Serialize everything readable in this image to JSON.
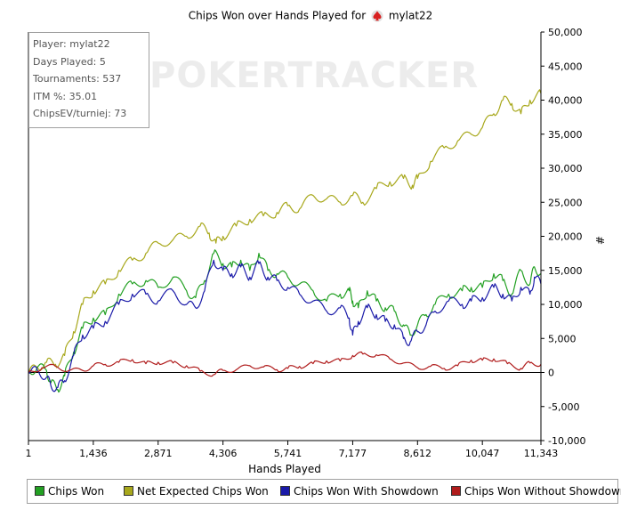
{
  "title": {
    "prefix": "Chips Won over Hands Played for",
    "player": "mylat22"
  },
  "watermark": "POKERTRACKER",
  "info_box": [
    "Player: mylat22",
    "Days Played: 5",
    "Tournaments: 537",
    "ITM %: 35.01",
    "ChipsEV/turniej: 73"
  ],
  "legend": [
    {
      "label": "Chips Won",
      "color": "#22a022"
    },
    {
      "label": "Net Expected Chips Won",
      "color": "#a8a81c"
    },
    {
      "label": "Chips Won With Showdown",
      "color": "#1a1aa8"
    },
    {
      "label": "Chips Won Without Showdown",
      "color": "#b01c1c"
    }
  ],
  "chart_data": {
    "type": "line",
    "xlabel": "Hands Played",
    "ylabel": "#",
    "xlim": [
      1,
      11343
    ],
    "ylim": [
      -10000,
      50000
    ],
    "x_ticks": [
      1,
      1436,
      2871,
      4306,
      5741,
      7177,
      8612,
      10047,
      11343
    ],
    "x_tick_labels": [
      "1",
      "1,436",
      "2,871",
      "4,306",
      "5,741",
      "7,177",
      "8,612",
      "10,047",
      "11,343"
    ],
    "y_ticks": [
      50000,
      45000,
      40000,
      35000,
      30000,
      25000,
      20000,
      15000,
      10000,
      5000,
      0,
      -5000,
      -10000
    ],
    "y_tick_labels": [
      "50,000",
      "45,000",
      "40,000",
      "35,000",
      "30,000",
      "25,000",
      "20,000",
      "15,000",
      "10,000",
      "5,000",
      "0",
      "-5,000",
      "-10,000"
    ],
    "series": [
      {
        "name": "Net Expected Chips Won",
        "color": "#a8a81c",
        "x": [
          1,
          200,
          400,
          600,
          800,
          1000,
          1200,
          1436,
          1700,
          2000,
          2300,
          2600,
          2871,
          3200,
          3500,
          3800,
          4000,
          4150,
          4306,
          4600,
          4900,
          5200,
          5500,
          5741,
          6000,
          6300,
          6600,
          6900,
          7177,
          7400,
          7700,
          8000,
          8300,
          8500,
          8612,
          8900,
          9200,
          9500,
          9800,
          10047,
          10300,
          10500,
          10700,
          10900,
          11100,
          11343
        ],
        "y": [
          0,
          800,
          1500,
          1200,
          2500,
          6000,
          10000,
          12000,
          13000,
          15000,
          16500,
          17500,
          19000,
          19500,
          20000,
          21500,
          20500,
          19000,
          20000,
          21500,
          22500,
          23000,
          23500,
          24500,
          24000,
          26000,
          25500,
          25000,
          26000,
          25000,
          27000,
          28000,
          28500,
          27500,
          28500,
          31000,
          33000,
          34000,
          35000,
          36000,
          38000,
          40000,
          39500,
          38000,
          40000,
          41000
        ]
      },
      {
        "name": "Chips Won",
        "color": "#22a022",
        "x": [
          1,
          200,
          400,
          500,
          650,
          800,
          1000,
          1200,
          1436,
          1700,
          2000,
          2300,
          2600,
          2871,
          3200,
          3500,
          3700,
          3900,
          4100,
          4306,
          4500,
          4700,
          4900,
          5100,
          5300,
          5500,
          5741,
          6000,
          6300,
          6600,
          6900,
          7100,
          7177,
          7300,
          7500,
          7700,
          7900,
          8100,
          8300,
          8450,
          8612,
          8800,
          9000,
          9300,
          9600,
          9800,
          10047,
          10300,
          10500,
          10700,
          10900,
          11100,
          11200,
          11343
        ],
        "y": [
          0,
          800,
          300,
          -1500,
          -2500,
          -500,
          3000,
          6500,
          8000,
          8500,
          11500,
          13000,
          13500,
          12500,
          14000,
          12000,
          11000,
          13500,
          17500,
          16000,
          15500,
          16500,
          15000,
          17500,
          15000,
          14500,
          14000,
          13000,
          12000,
          10500,
          11500,
          12000,
          10500,
          9500,
          12000,
          10500,
          9500,
          9000,
          7000,
          5500,
          7000,
          8500,
          10000,
          11500,
          12000,
          12500,
          12500,
          14500,
          13500,
          11500,
          15000,
          13000,
          15500,
          14500
        ]
      },
      {
        "name": "Chips Won With Showdown",
        "color": "#1a1aa8",
        "x": [
          1,
          200,
          400,
          500,
          650,
          800,
          1000,
          1200,
          1436,
          1700,
          2000,
          2300,
          2600,
          2871,
          3200,
          3500,
          3700,
          3900,
          4100,
          4306,
          4500,
          4700,
          4900,
          5100,
          5300,
          5500,
          5741,
          6000,
          6300,
          6600,
          6900,
          7100,
          7177,
          7300,
          7500,
          7700,
          7900,
          8100,
          8300,
          8450,
          8612,
          8800,
          9000,
          9300,
          9600,
          9800,
          10047,
          10300,
          10500,
          10700,
          10900,
          11100,
          11200,
          11343
        ],
        "y": [
          0,
          300,
          -700,
          -2000,
          -2200,
          -1200,
          2500,
          5500,
          6500,
          7500,
          10000,
          11500,
          11500,
          10500,
          12000,
          10000,
          9500,
          12000,
          16500,
          15000,
          14500,
          15500,
          14000,
          16000,
          14000,
          13500,
          12500,
          11500,
          10500,
          9000,
          9500,
          8000,
          5500,
          7500,
          9500,
          8500,
          7500,
          7000,
          5000,
          4500,
          6000,
          7000,
          9000,
          10500,
          10000,
          10500,
          11000,
          12500,
          11500,
          10500,
          12500,
          11500,
          14000,
          13000
        ]
      },
      {
        "name": "Chips Won Without Showdown",
        "color": "#b01c1c",
        "x": [
          1,
          300,
          600,
          900,
          1200,
          1436,
          1700,
          2000,
          2300,
          2600,
          2871,
          3200,
          3500,
          3800,
          4100,
          4306,
          4600,
          4900,
          5200,
          5500,
          5741,
          6000,
          6300,
          6600,
          6900,
          7177,
          7400,
          7700,
          8000,
          8300,
          8612,
          8900,
          9200,
          9500,
          9800,
          10047,
          10300,
          10600,
          10900,
          11100,
          11343
        ],
        "y": [
          0,
          700,
          900,
          300,
          300,
          1000,
          1200,
          1500,
          1900,
          1300,
          1500,
          1400,
          1000,
          200,
          -300,
          300,
          400,
          1000,
          800,
          400,
          600,
          900,
          1300,
          1700,
          1700,
          2500,
          2700,
          2600,
          2000,
          1400,
          700,
          900,
          600,
          1000,
          1800,
          1800,
          2000,
          1300,
          600,
          1400,
          1200
        ]
      }
    ]
  }
}
